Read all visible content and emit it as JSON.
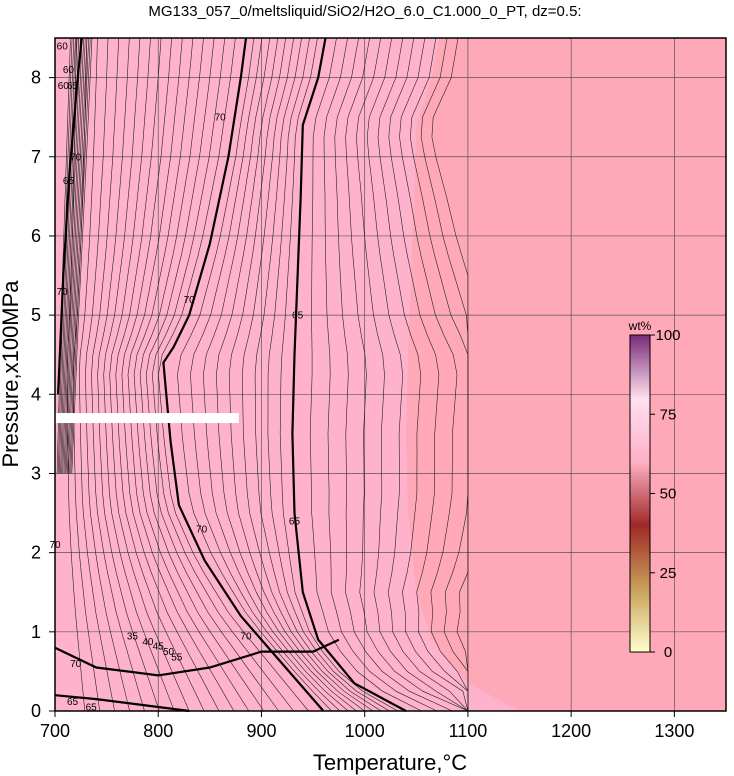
{
  "chart_data": {
    "type": "contour",
    "title": "MG133_057_0/meltsliquid/SiO2/H2O_6.0_C1.000_0_PT, dz=0.5:",
    "xlabel": "Temperature,°C",
    "ylabel": "Pressure,x100MPa",
    "xlim": [
      700,
      1350
    ],
    "ylim": [
      0,
      8.5
    ],
    "x_ticks": [
      700,
      800,
      900,
      1000,
      1100,
      1200,
      1300
    ],
    "y_ticks": [
      0,
      1,
      2,
      3,
      4,
      5,
      6,
      7,
      8
    ],
    "grid": true,
    "background_fill": "#ffa8b8",
    "subsolidus_fill": "#ffb2cc",
    "colorbar": {
      "unit": "wt%",
      "ticks": [
        0,
        25,
        50,
        75,
        100
      ],
      "colors": [
        "#ffffcc",
        "#c8a058",
        "#a02828",
        "#ffb0c8",
        "#ffe0f0",
        "#7a2a7a"
      ]
    },
    "labeled_contours": [
      {
        "level": 70,
        "points": [
          [
            700,
            0.8
          ],
          [
            740,
            0.55
          ],
          [
            800,
            0.45
          ],
          [
            850,
            0.55
          ],
          [
            900,
            0.75
          ],
          [
            950,
            0.75
          ],
          [
            975,
            0.9
          ]
        ],
        "note": "low-pressure 70 contour"
      },
      {
        "level": 70,
        "points": [
          [
            960,
            0.0
          ],
          [
            920,
            0.6
          ],
          [
            880,
            1.2
          ],
          [
            845,
            1.9
          ],
          [
            820,
            2.6
          ],
          [
            812,
            3.4
          ],
          [
            805,
            4.4
          ],
          [
            815,
            4.6
          ],
          [
            830,
            5.0
          ],
          [
            850,
            5.9
          ],
          [
            868,
            7.0
          ],
          [
            880,
            8.0
          ],
          [
            885,
            8.5
          ]
        ]
      },
      {
        "level": 65,
        "points": [
          [
            1040,
            0.0
          ],
          [
            990,
            0.35
          ],
          [
            955,
            0.9
          ],
          [
            940,
            1.5
          ],
          [
            932,
            2.5
          ],
          [
            930,
            3.5
          ],
          [
            932,
            4.5
          ],
          [
            935,
            5.5
          ],
          [
            938,
            6.5
          ],
          [
            940,
            7.4
          ],
          [
            955,
            8.0
          ],
          [
            962,
            8.5
          ]
        ]
      },
      {
        "level": 65,
        "points": [
          [
            700,
            0.2
          ],
          [
            740,
            0.15
          ],
          [
            800,
            0.05
          ],
          [
            830,
            0.0
          ]
        ],
        "note": "lowest labeled contour near axis"
      },
      {
        "level": 60,
        "points": [
          [
            703,
            4.0
          ],
          [
            708,
            5.5
          ],
          [
            714,
            6.8
          ],
          [
            722,
            8.0
          ],
          [
            726,
            8.5
          ]
        ],
        "note": "steep contour bundle at left edge"
      }
    ],
    "annotations": [
      {
        "text": "70",
        "x": 860,
        "y": 7.5
      },
      {
        "text": "70",
        "x": 830,
        "y": 5.2
      },
      {
        "text": "70",
        "x": 842,
        "y": 2.3
      },
      {
        "text": "70",
        "x": 885,
        "y": 0.95
      },
      {
        "text": "70",
        "x": 720,
        "y": 0.6
      },
      {
        "text": "70",
        "x": 720,
        "y": 7.0
      },
      {
        "text": "70",
        "x": 707,
        "y": 5.3
      },
      {
        "text": "70",
        "x": 700,
        "y": 2.1
      },
      {
        "text": "65",
        "x": 935,
        "y": 5.0
      },
      {
        "text": "65",
        "x": 932,
        "y": 2.4
      },
      {
        "text": "65",
        "x": 713,
        "y": 6.7
      },
      {
        "text": "65",
        "x": 717,
        "y": 7.9
      },
      {
        "text": "65",
        "x": 735,
        "y": 0.05
      },
      {
        "text": "65",
        "x": 717,
        "y": 0.12
      },
      {
        "text": "60",
        "x": 713,
        "y": 8.1
      },
      {
        "text": "60",
        "x": 708,
        "y": 7.9
      },
      {
        "text": "60",
        "x": 707,
        "y": 8.4
      },
      {
        "text": "35",
        "x": 775,
        "y": 0.95
      },
      {
        "text": "40",
        "x": 790,
        "y": 0.88
      },
      {
        "text": "45",
        "x": 800,
        "y": 0.82
      },
      {
        "text": "50",
        "x": 810,
        "y": 0.75
      },
      {
        "text": "55",
        "x": 818,
        "y": 0.68
      }
    ],
    "highlight_band": {
      "y": 3.7,
      "x_range": [
        700,
        878
      ],
      "color": "#ffffff"
    }
  }
}
